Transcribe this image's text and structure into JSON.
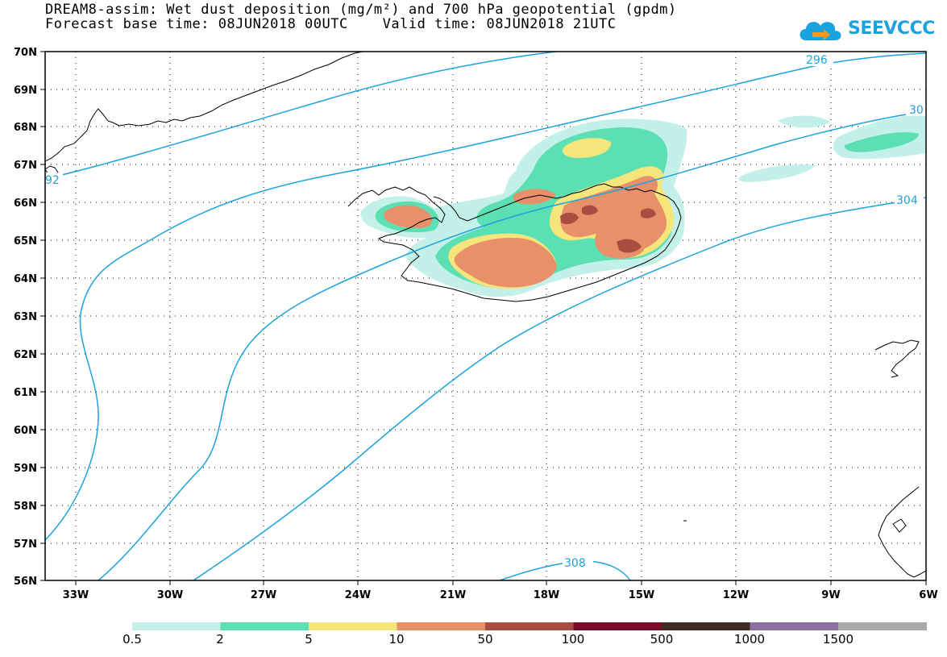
{
  "title_line1": "DREAM8-assim: Wet dust deposition (mg/m²) and 700 hPa geopotential (gpdm)",
  "title_line2": "Forecast base time: 08JUN2018 00UTC    Valid time: 08JUN2018 21UTC",
  "logo_text": "SEEVCCC",
  "lat_labels": [
    "70N",
    "69N",
    "68N",
    "67N",
    "66N",
    "65N",
    "64N",
    "63N",
    "62N",
    "61N",
    "60N",
    "59N",
    "58N",
    "57N",
    "56N"
  ],
  "lon_labels": [
    "33W",
    "30W",
    "27W",
    "24W",
    "21W",
    "18W",
    "15W",
    "12W",
    "9W",
    "6W"
  ],
  "contour_labels": [
    "296",
    "30",
    "92",
    "304",
    "308"
  ],
  "colorbar": {
    "colors": [
      "#c4f0ea",
      "#5ddfb4",
      "#f5e57a",
      "#e8906a",
      "#a84e40",
      "#7a0c2a",
      "#3f2b22",
      "#8c70a4",
      "#aaaaaa"
    ],
    "labels": [
      "0.5",
      "2",
      "5",
      "10",
      "50",
      "100",
      "500",
      "1000",
      "1500"
    ]
  },
  "colors": {
    "contour": "#1aa3df",
    "accent": "#1aa3df"
  }
}
